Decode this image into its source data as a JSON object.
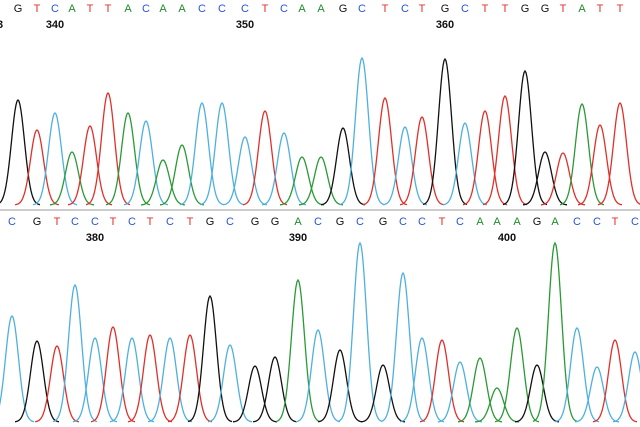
{
  "panels": [
    {
      "bases": [
        "G",
        "T",
        "C",
        "A",
        "T",
        "T",
        "A",
        "C",
        "A",
        "A",
        "C",
        "C",
        "C",
        "T",
        "C",
        "A",
        "A",
        "G",
        "C",
        "T",
        "C",
        "T",
        "G",
        "C",
        "T",
        "T",
        "G",
        "G",
        "T",
        "A",
        "T",
        "T"
      ],
      "peak_heights": [
        105,
        75,
        92,
        53,
        79,
        112,
        92,
        84,
        45,
        60,
        102,
        102,
        68,
        94,
        72,
        48,
        48,
        77,
        147,
        107,
        78,
        88,
        146,
        82,
        94,
        109,
        134,
        53,
        52,
        101,
        80,
        102
      ],
      "positions": [
        "340",
        "350",
        "360",
        "3"
      ]
    },
    {
      "bases": [
        "C",
        "G",
        "T",
        "C",
        "C",
        "T",
        "C",
        "T",
        "C",
        "T",
        "G",
        "C",
        "G",
        "G",
        "A",
        "C",
        "G",
        "C",
        "G",
        "C",
        "C",
        "T",
        "C",
        "A",
        "A",
        "A",
        "G",
        "A",
        "C",
        "C",
        "T",
        "C"
      ],
      "peak_heights": [
        106,
        81,
        76,
        137,
        84,
        95,
        84,
        87,
        84,
        87,
        126,
        77,
        56,
        65,
        142,
        92,
        72,
        179,
        57,
        149,
        84,
        82,
        60,
        64,
        34,
        94,
        57,
        179,
        94,
        55,
        82,
        70
      ],
      "positions": [
        "380",
        "390",
        "400"
      ]
    }
  ],
  "letter_colors": {
    "G": "#111111",
    "T": "#e0302a",
    "C": "#2a55d0",
    "A": "#1f8a2a"
  },
  "trace_colors": {
    "G": "#111111",
    "T": "#e0302a",
    "C": "#4fb0e0",
    "A": "#2a9a35"
  }
}
